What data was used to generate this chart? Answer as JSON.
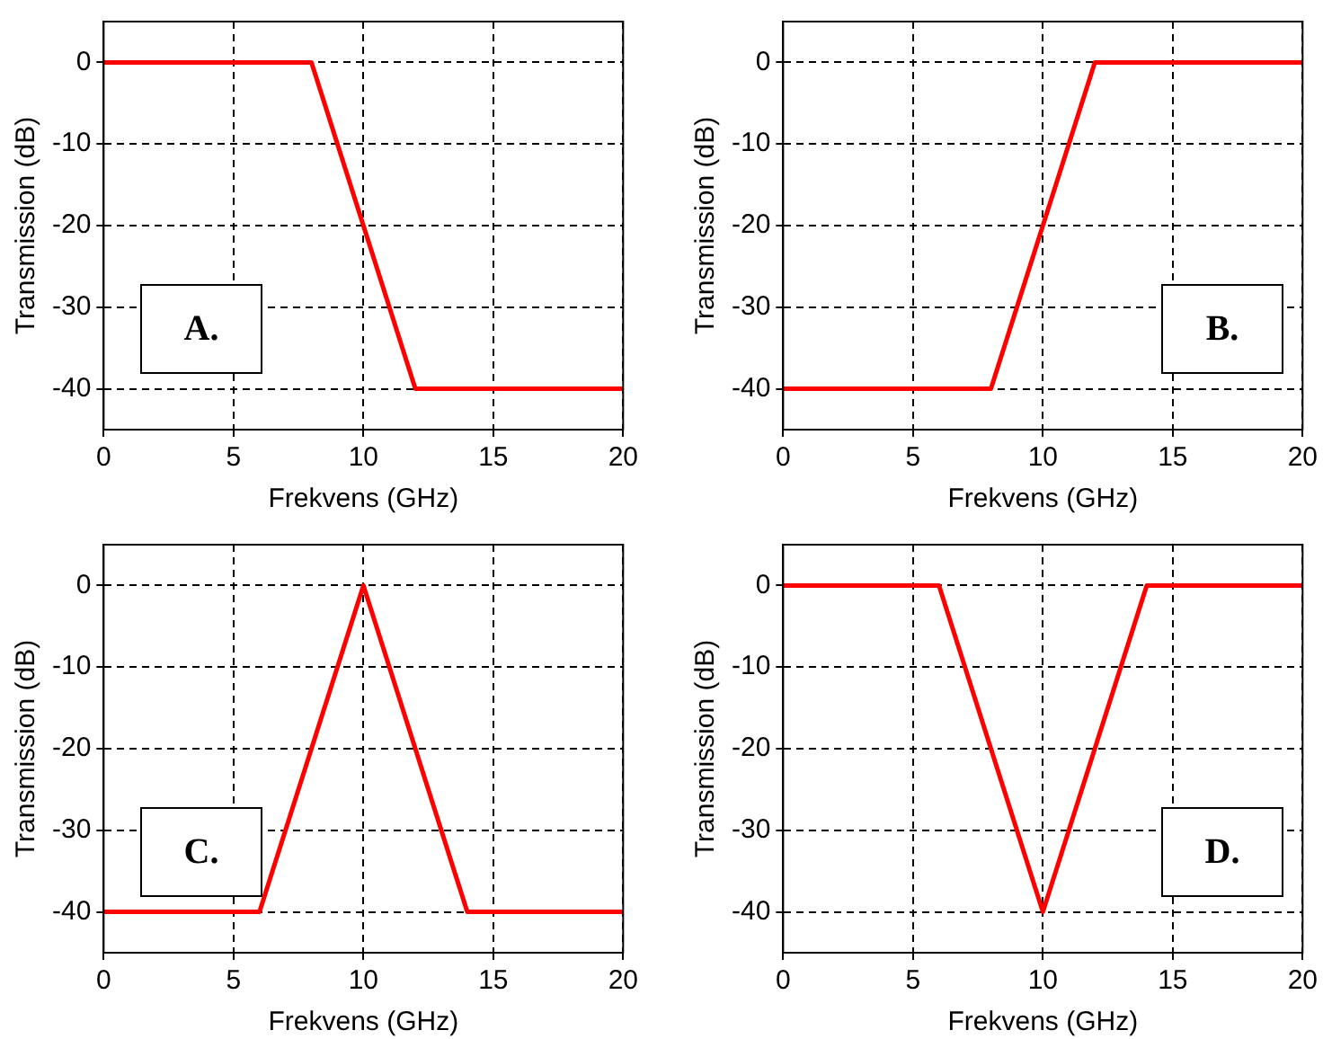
{
  "chart_data": [
    {
      "type": "line",
      "xlabel": "Frekvens (GHz)",
      "ylabel": "Transmission (dB)",
      "annotations": [
        "A."
      ],
      "x": [
        0,
        8,
        12,
        20
      ],
      "series": [
        {
          "color": "#ff0000",
          "values": [
            0,
            0,
            -40,
            -40
          ]
        }
      ],
      "xlim": [
        0,
        20
      ],
      "xticks": [
        0,
        5,
        10,
        15,
        20
      ],
      "ylim": [
        -45,
        5
      ],
      "yticks": [
        -40,
        -30,
        -20,
        -10,
        0
      ],
      "grid": true,
      "legend": false,
      "marker": "none",
      "line_style": "solid"
    },
    {
      "type": "line",
      "xlabel": "Frekvens (GHz)",
      "ylabel": "Transmission (dB)",
      "annotations": [
        "B."
      ],
      "x": [
        0,
        8,
        12,
        20
      ],
      "series": [
        {
          "color": "#ff0000",
          "values": [
            -40,
            -40,
            0,
            0
          ]
        }
      ],
      "xlim": [
        0,
        20
      ],
      "xticks": [
        0,
        5,
        10,
        15,
        20
      ],
      "ylim": [
        -45,
        5
      ],
      "yticks": [
        -40,
        -30,
        -20,
        -10,
        0
      ],
      "grid": true,
      "legend": false,
      "marker": "none",
      "line_style": "solid"
    },
    {
      "type": "line",
      "xlabel": "Frekvens (GHz)",
      "ylabel": "Transmission (dB)",
      "annotations": [
        "C."
      ],
      "x": [
        0,
        6,
        10,
        14,
        20
      ],
      "series": [
        {
          "color": "#ff0000",
          "values": [
            -40,
            -40,
            0,
            -40,
            -40
          ]
        }
      ],
      "xlim": [
        0,
        20
      ],
      "xticks": [
        0,
        5,
        10,
        15,
        20
      ],
      "ylim": [
        -45,
        5
      ],
      "yticks": [
        -40,
        -30,
        -20,
        -10,
        0
      ],
      "grid": true,
      "legend": false,
      "marker": "none",
      "line_style": "solid"
    },
    {
      "type": "line",
      "xlabel": "Frekvens (GHz)",
      "ylabel": "Transmission (dB)",
      "annotations": [
        "D."
      ],
      "x": [
        0,
        6,
        10,
        14,
        20
      ],
      "series": [
        {
          "color": "#ff0000",
          "values": [
            0,
            0,
            -40,
            0,
            0
          ]
        }
      ],
      "xlim": [
        0,
        20
      ],
      "xticks": [
        0,
        5,
        10,
        15,
        20
      ],
      "ylim": [
        -45,
        5
      ],
      "yticks": [
        -40,
        -30,
        -20,
        -10,
        0
      ],
      "grid": true,
      "legend": false,
      "marker": "none",
      "line_style": "solid"
    }
  ]
}
